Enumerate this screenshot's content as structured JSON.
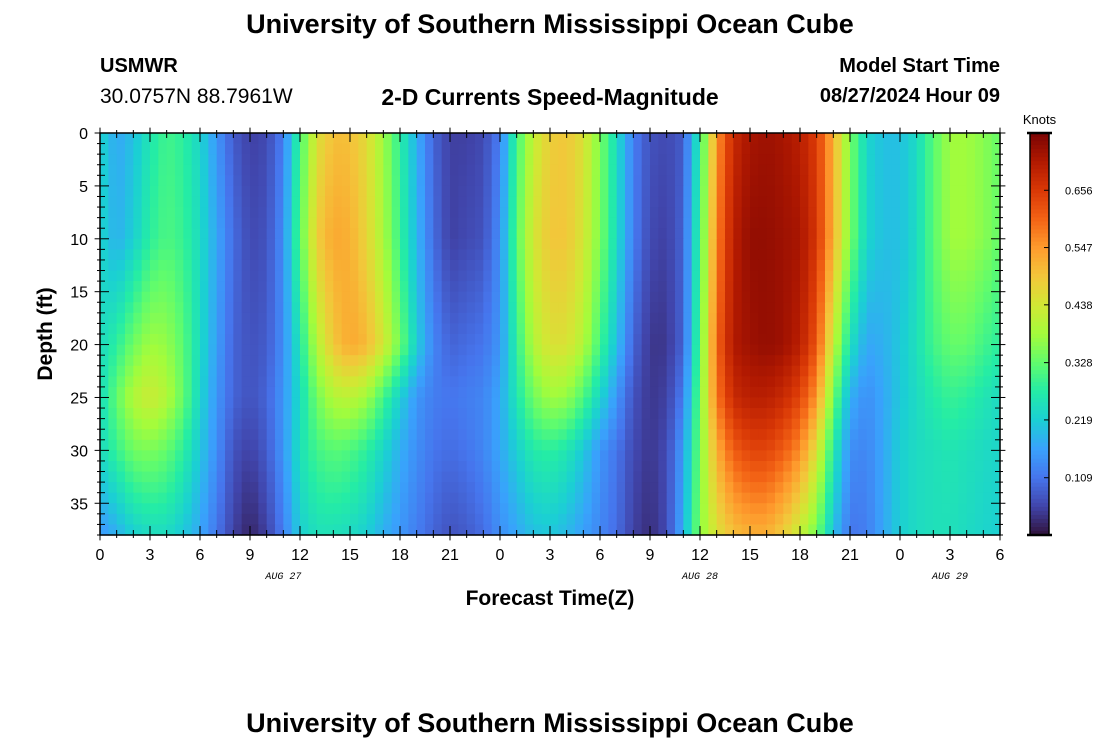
{
  "header": {
    "title": "University of Southern Mississippi Ocean Cube",
    "station": "USMWR",
    "coordinates": "30.0757N  88.7961W",
    "subtitle": "2-D Currents Speed-Magnitude",
    "model_start_label": "Model Start Time",
    "model_start_value": "08/27/2024 Hour 09",
    "footer_title": "University of Southern Mississippi Ocean Cube"
  },
  "chart_data": {
    "type": "heatmap",
    "title": "2-D Currents Speed-Magnitude",
    "xlabel": "Forecast Time(Z)",
    "ylabel": "Depth (ft)",
    "x_range_hours": [
      0,
      54
    ],
    "y_range_ft": [
      0,
      38
    ],
    "y_inverted": true,
    "x_tick_labels": [
      "0",
      "3",
      "6",
      "9",
      "12",
      "15",
      "18",
      "21",
      "0",
      "3",
      "6",
      "9",
      "12",
      "15",
      "18",
      "21",
      "0",
      "3",
      "6"
    ],
    "y_ticks": [
      0,
      5,
      10,
      15,
      20,
      25,
      30,
      35
    ],
    "date_labels": [
      {
        "label": "AUG 27",
        "at_hour": 11
      },
      {
        "label": "AUG 28",
        "at_hour": 36
      },
      {
        "label": "AUG 29",
        "at_hour": 51
      }
    ],
    "colorbar": {
      "title": "Knots",
      "range": [
        0.0,
        0.765
      ],
      "tick_values": [
        0.109,
        0.219,
        0.328,
        0.438,
        0.547,
        0.656
      ],
      "tick_labels": [
        "0.109",
        "0.219",
        "0.328",
        "0.438",
        "0.547",
        "0.656"
      ]
    },
    "colormap": [
      "#30123b",
      "#4145ab",
      "#4675ed",
      "#39a2fc",
      "#1bcfd4",
      "#24eca6",
      "#61fc6c",
      "#a4fc3b",
      "#d1e834",
      "#f3c63a",
      "#fe9b2d",
      "#f36315",
      "#d93806",
      "#b11901",
      "#7a0403"
    ],
    "speed_time_hours": [
      0,
      1,
      2,
      3,
      4,
      5,
      6,
      7,
      8,
      9,
      10,
      11,
      12,
      13,
      14,
      15,
      16,
      17,
      18,
      19,
      20,
      21,
      22,
      23,
      24,
      25,
      26,
      27,
      28,
      29,
      30,
      31,
      32,
      33,
      34,
      35,
      36,
      37,
      38,
      39,
      40,
      41,
      42,
      43,
      44,
      45,
      46,
      47,
      48,
      49,
      50,
      51,
      52,
      53,
      54
    ],
    "speed_depths_ft": [
      0,
      10,
      20,
      25,
      30,
      38
    ],
    "speed_knots": [
      [
        0.23,
        0.17,
        0.2,
        0.26,
        0.3,
        0.28,
        0.23,
        0.15,
        0.08,
        0.05,
        0.06,
        0.12,
        0.3,
        0.45,
        0.5,
        0.5,
        0.46,
        0.38,
        0.28,
        0.18,
        0.09,
        0.05,
        0.05,
        0.06,
        0.12,
        0.3,
        0.42,
        0.48,
        0.49,
        0.45,
        0.35,
        0.24,
        0.12,
        0.07,
        0.06,
        0.08,
        0.28,
        0.55,
        0.68,
        0.72,
        0.73,
        0.72,
        0.7,
        0.65,
        0.52,
        0.35,
        0.23,
        0.2,
        0.2,
        0.24,
        0.32,
        0.38,
        0.38,
        0.36,
        0.33
      ],
      [
        0.23,
        0.18,
        0.22,
        0.28,
        0.31,
        0.29,
        0.24,
        0.17,
        0.1,
        0.06,
        0.07,
        0.14,
        0.32,
        0.48,
        0.53,
        0.52,
        0.47,
        0.39,
        0.29,
        0.19,
        0.1,
        0.05,
        0.06,
        0.07,
        0.14,
        0.32,
        0.44,
        0.49,
        0.49,
        0.44,
        0.35,
        0.24,
        0.12,
        0.06,
        0.05,
        0.09,
        0.3,
        0.57,
        0.7,
        0.74,
        0.74,
        0.73,
        0.72,
        0.66,
        0.52,
        0.35,
        0.23,
        0.2,
        0.2,
        0.24,
        0.32,
        0.38,
        0.38,
        0.36,
        0.33
      ],
      [
        0.24,
        0.28,
        0.34,
        0.38,
        0.37,
        0.32,
        0.24,
        0.16,
        0.09,
        0.07,
        0.08,
        0.14,
        0.26,
        0.4,
        0.49,
        0.53,
        0.51,
        0.44,
        0.34,
        0.22,
        0.13,
        0.09,
        0.1,
        0.11,
        0.15,
        0.28,
        0.4,
        0.45,
        0.45,
        0.4,
        0.3,
        0.2,
        0.09,
        0.04,
        0.04,
        0.09,
        0.32,
        0.6,
        0.71,
        0.73,
        0.74,
        0.73,
        0.7,
        0.62,
        0.42,
        0.25,
        0.17,
        0.18,
        0.21,
        0.25,
        0.3,
        0.33,
        0.33,
        0.3,
        0.28
      ],
      [
        0.24,
        0.33,
        0.4,
        0.43,
        0.4,
        0.33,
        0.23,
        0.15,
        0.09,
        0.07,
        0.09,
        0.15,
        0.24,
        0.34,
        0.4,
        0.41,
        0.38,
        0.3,
        0.22,
        0.15,
        0.12,
        0.11,
        0.12,
        0.13,
        0.17,
        0.26,
        0.34,
        0.38,
        0.37,
        0.31,
        0.23,
        0.15,
        0.07,
        0.04,
        0.05,
        0.12,
        0.34,
        0.58,
        0.68,
        0.7,
        0.7,
        0.68,
        0.64,
        0.55,
        0.34,
        0.18,
        0.14,
        0.17,
        0.21,
        0.24,
        0.27,
        0.29,
        0.28,
        0.26,
        0.24
      ],
      [
        0.24,
        0.29,
        0.34,
        0.35,
        0.33,
        0.28,
        0.21,
        0.14,
        0.07,
        0.05,
        0.08,
        0.15,
        0.25,
        0.3,
        0.32,
        0.31,
        0.28,
        0.23,
        0.18,
        0.14,
        0.11,
        0.1,
        0.11,
        0.13,
        0.17,
        0.22,
        0.27,
        0.28,
        0.26,
        0.21,
        0.15,
        0.11,
        0.06,
        0.04,
        0.06,
        0.16,
        0.35,
        0.52,
        0.61,
        0.64,
        0.64,
        0.61,
        0.56,
        0.45,
        0.27,
        0.14,
        0.13,
        0.17,
        0.22,
        0.24,
        0.25,
        0.26,
        0.25,
        0.24,
        0.23
      ],
      [
        0.15,
        0.18,
        0.22,
        0.24,
        0.24,
        0.21,
        0.17,
        0.11,
        0.05,
        0.02,
        0.05,
        0.12,
        0.22,
        0.25,
        0.25,
        0.24,
        0.22,
        0.18,
        0.15,
        0.12,
        0.09,
        0.07,
        0.08,
        0.1,
        0.14,
        0.17,
        0.2,
        0.21,
        0.19,
        0.16,
        0.13,
        0.1,
        0.05,
        0.03,
        0.06,
        0.18,
        0.36,
        0.45,
        0.5,
        0.52,
        0.52,
        0.48,
        0.42,
        0.34,
        0.2,
        0.11,
        0.12,
        0.17,
        0.22,
        0.24,
        0.25,
        0.25,
        0.24,
        0.23,
        0.22
      ]
    ]
  }
}
